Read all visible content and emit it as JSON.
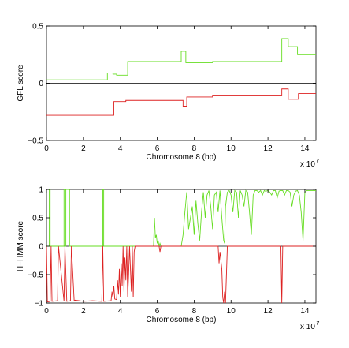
{
  "chart_data": [
    {
      "type": "line",
      "xlabel": "Chromosome 8 (bp)",
      "ylabel": "GFL score",
      "x_exponent_label": "x 10",
      "x_exponent_power": "7",
      "xlim": [
        0,
        14.6
      ],
      "ylim": [
        -0.5,
        0.5
      ],
      "xticks": [
        0,
        2,
        4,
        6,
        8,
        10,
        12,
        14
      ],
      "yticks": [
        -0.5,
        0,
        0.5
      ],
      "ytick_labels": [
        "−0.5",
        "0",
        "0.5"
      ],
      "grid": false,
      "zero_line": true,
      "series": [
        {
          "color": "#66dd22",
          "x": [
            0,
            3.3,
            3.3,
            3.6,
            3.6,
            3.8,
            3.8,
            4.4,
            4.4,
            7.3,
            7.3,
            7.55,
            7.55,
            9.0,
            9.0,
            12.75,
            12.75,
            13.1,
            13.1,
            13.6,
            13.6,
            14.6
          ],
          "y": [
            0.03,
            0.03,
            0.09,
            0.09,
            0.08,
            0.08,
            0.07,
            0.07,
            0.19,
            0.19,
            0.28,
            0.28,
            0.18,
            0.18,
            0.19,
            0.19,
            0.39,
            0.39,
            0.32,
            0.32,
            0.25,
            0.25
          ]
        },
        {
          "color": "#dd2222",
          "x": [
            0,
            3.65,
            3.65,
            4.3,
            4.3,
            7.4,
            7.4,
            7.6,
            7.6,
            9.0,
            9.0,
            12.75,
            12.75,
            13.1,
            13.1,
            13.65,
            13.65,
            14.6
          ],
          "y": [
            -0.28,
            -0.28,
            -0.16,
            -0.16,
            -0.15,
            -0.15,
            -0.2,
            -0.2,
            -0.12,
            -0.12,
            -0.11,
            -0.11,
            -0.05,
            -0.05,
            -0.14,
            -0.14,
            -0.09,
            -0.09
          ]
        }
      ]
    },
    {
      "type": "line",
      "xlabel": "Chromosome 8 (bp)",
      "ylabel": "H−HMM score",
      "x_exponent_label": "x 10",
      "x_exponent_power": "7",
      "xlim": [
        0,
        14.6
      ],
      "ylim": [
        -1,
        1
      ],
      "xticks": [
        0,
        2,
        4,
        6,
        8,
        10,
        12,
        14
      ],
      "yticks": [
        -1,
        -0.5,
        0,
        0.5,
        1
      ],
      "ytick_labels": [
        "−1",
        "−0.5",
        "0",
        "0.5",
        "1"
      ],
      "grid": false,
      "zero_line": true,
      "series": [
        {
          "color": "#66dd22",
          "x": [
            0,
            0.15,
            0.15,
            0.2,
            0.2,
            0.95,
            0.95,
            1.0,
            1.0,
            1.05,
            1.05,
            1.25,
            1.25,
            1.3,
            1.3,
            3.05,
            3.05,
            3.1,
            3.1,
            5.8,
            5.85,
            5.9,
            5.95,
            6.0,
            6.05,
            6.1,
            6.15,
            6.2,
            6.3,
            7.3,
            7.4,
            7.5,
            7.6,
            7.7,
            7.8,
            7.9,
            8.0,
            8.1,
            8.2,
            8.3,
            8.4,
            8.5,
            8.6,
            8.7,
            8.8,
            8.9,
            9.0,
            9.1,
            9.2,
            9.3,
            9.4,
            9.5,
            9.6,
            9.65,
            9.7,
            9.8,
            9.9,
            10.0,
            10.1,
            10.2,
            10.3,
            10.4,
            10.5,
            10.6,
            10.7,
            10.8,
            10.9,
            11.0,
            11.1,
            11.2,
            11.3,
            11.4,
            11.5,
            11.6,
            11.7,
            11.8,
            11.9,
            12.0,
            12.1,
            12.2,
            12.3,
            12.4,
            12.5,
            12.6,
            12.7,
            12.8,
            12.9,
            13.0,
            13.1,
            13.2,
            13.3,
            13.4,
            13.5,
            13.6,
            13.7,
            13.8,
            13.9,
            14.0,
            14.1,
            14.2,
            14.3,
            14.6
          ],
          "y": [
            0,
            0,
            1,
            1,
            0,
            0,
            1,
            1,
            0,
            0,
            1,
            1,
            0,
            0,
            0,
            0,
            1,
            1,
            0,
            0,
            0.5,
            0.15,
            0.2,
            0.05,
            0.1,
            0,
            0.05,
            0,
            0,
            0,
            0.2,
            0.6,
            0.95,
            0.3,
            0.5,
            0.7,
            0.2,
            0.8,
            0.4,
            0.1,
            0.6,
            0.95,
            0.5,
            0.9,
            0.98,
            0.7,
            0.3,
            0.9,
            0.95,
            0.6,
            0.98,
            0.5,
            0.1,
            0.05,
            0.7,
            0.95,
            0.98,
            0.9,
            0.6,
            0.98,
            0.95,
            0.5,
            0.98,
            0.9,
            0.7,
            0.98,
            0.95,
            0.6,
            0.2,
            0.9,
            0.98,
            0.98,
            0.95,
            0.98,
            0.9,
            0.98,
            0.97,
            0.98,
            0.95,
            0.9,
            0.98,
            0.98,
            0.85,
            0.97,
            0.98,
            0.98,
            0.9,
            0.98,
            0.98,
            0.95,
            0.7,
            0.9,
            0.97,
            0.98,
            0.9,
            0.6,
            0.1,
            0.95,
            0.98,
            0.98,
            0.98,
            0.98
          ]
        },
        {
          "color": "#dd2222",
          "x": [
            0,
            0.05,
            0.2,
            0.25,
            0.3,
            0.6,
            0.65,
            0.95,
            1.0,
            1.1,
            1.3,
            1.35,
            1.5,
            1.55,
            2.0,
            2.5,
            3.0,
            3.05,
            3.1,
            3.5,
            3.55,
            3.6,
            3.65,
            3.7,
            3.8,
            3.85,
            3.9,
            3.95,
            4.0,
            4.05,
            4.1,
            4.15,
            4.2,
            4.25,
            4.3,
            4.35,
            4.4,
            4.45,
            4.5,
            4.6,
            4.65,
            4.7,
            4.75,
            4.8,
            6.1,
            6.15,
            6.2,
            6.3,
            9.3,
            9.35,
            9.4,
            9.5,
            9.55,
            9.6,
            9.65,
            9.7,
            9.75,
            9.8,
            12.7,
            12.75,
            12.8,
            14.6
          ],
          "y": [
            0,
            -0.98,
            -0.97,
            0,
            -0.97,
            -0.96,
            0,
            -0.97,
            0,
            -0.97,
            -0.96,
            0,
            -0.96,
            -0.95,
            -0.97,
            -0.96,
            -0.97,
            0,
            -0.97,
            -0.96,
            -0.8,
            -0.9,
            -0.7,
            -0.93,
            -0.94,
            -0.6,
            -0.85,
            -0.4,
            -0.9,
            -0.3,
            -0.7,
            0,
            -0.8,
            -0.2,
            -0.6,
            0,
            -0.9,
            -0.5,
            0,
            -0.8,
            0,
            -0.9,
            -0.1,
            0,
            0,
            -0.1,
            0,
            0,
            0,
            -0.3,
            -0.1,
            -0.4,
            -0.9,
            -1.0,
            -0.8,
            -1.0,
            -0.5,
            0,
            0,
            -1.0,
            0,
            0
          ]
        }
      ]
    }
  ]
}
